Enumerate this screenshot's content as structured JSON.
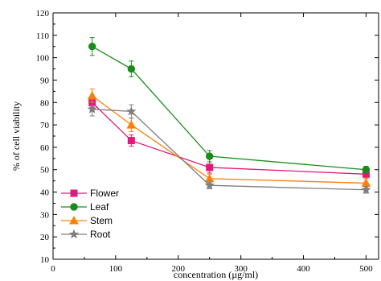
{
  "chart_data": {
    "type": "line",
    "title": "",
    "xlabel": "concentration (µg/ml)",
    "ylabel": "% of cell viability",
    "xlim": [
      0,
      520
    ],
    "ylim": [
      10,
      120
    ],
    "x_ticks": [
      0,
      100,
      200,
      300,
      400,
      500
    ],
    "y_ticks": [
      10,
      20,
      30,
      40,
      50,
      60,
      70,
      80,
      90,
      100,
      110,
      120
    ],
    "x_tick_labels": [
      "0",
      "100",
      "200",
      "300",
      "400",
      "500"
    ],
    "y_tick_labels": [
      "10",
      "20",
      "30",
      "40",
      "50",
      "60",
      "70",
      "80",
      "90",
      "100",
      "110",
      "120"
    ],
    "x": [
      62.5,
      125,
      250,
      500
    ],
    "legend_position": "bottom-left",
    "grid": false,
    "series": [
      {
        "name": "Flower",
        "color": "#e6177a",
        "marker": "square",
        "values": [
          80,
          63,
          51,
          48
        ],
        "errors": [
          2,
          2.5,
          2.5,
          2
        ]
      },
      {
        "name": "Leaf",
        "color": "#1a8c1a",
        "marker": "circle",
        "values": [
          105,
          95,
          56,
          50
        ],
        "errors": [
          4,
          3.5,
          2.5,
          1.5
        ]
      },
      {
        "name": "Stem",
        "color": "#ff7f0e",
        "marker": "triangle",
        "values": [
          83,
          70,
          46,
          44
        ],
        "errors": [
          3,
          3,
          2,
          2
        ]
      },
      {
        "name": "Root",
        "color": "#7f7f7f",
        "marker": "star",
        "values": [
          77,
          76,
          43,
          41
        ],
        "errors": [
          3,
          3,
          1.5,
          1.5
        ]
      }
    ]
  }
}
